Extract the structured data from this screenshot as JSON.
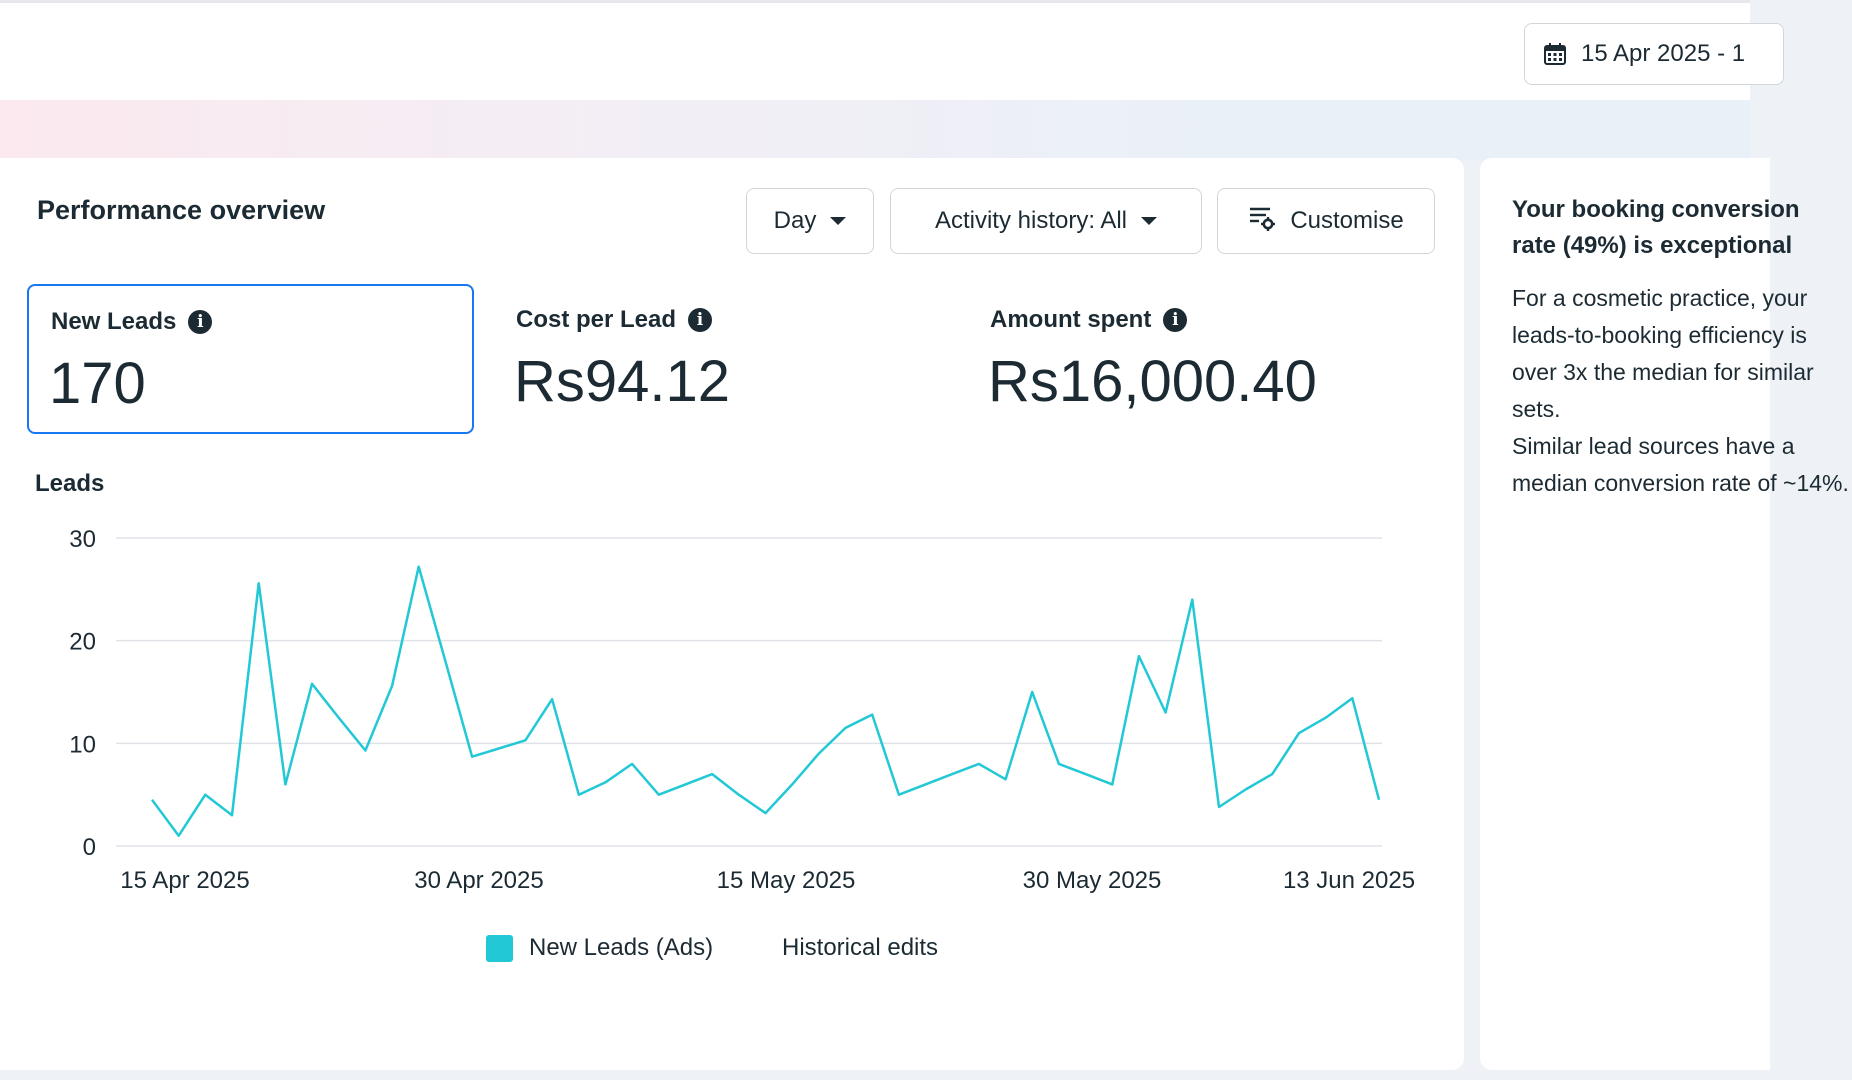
{
  "header": {
    "date_range": "15 Apr 2025 - 1",
    "calendar_icon": "calendar-icon"
  },
  "performance": {
    "title": "Performance overview",
    "buttons": {
      "day": "Day",
      "activity": "Activity history: All",
      "customise": "Customise"
    },
    "metrics": [
      {
        "label": "New Leads",
        "value": "170"
      },
      {
        "label": "Cost per Lead",
        "value": "Rs94.12"
      },
      {
        "label": "Amount spent",
        "value": "Rs16,000.40"
      }
    ],
    "chart_title": "Leads",
    "legend": {
      "series": "New Leads (Ads)",
      "edits": "Historical edits"
    }
  },
  "chart_data": {
    "type": "line",
    "ylabel": "Leads",
    "ylim": [
      0,
      30
    ],
    "yticks": [
      0,
      10,
      20,
      30
    ],
    "xtick_labels": [
      "15 Apr 2025",
      "30 Apr 2025",
      "15 May 2025",
      "30 May 2025",
      "13 Jun 2025"
    ],
    "x_start": "15 Apr 2025",
    "x_end": "13 Jun 2025",
    "grid": true,
    "series_color": "#22c8d6",
    "series": [
      {
        "name": "New Leads (Ads)",
        "values": [
          4.5,
          1,
          5,
          3,
          25.6,
          6,
          15.8,
          12.5,
          9.3,
          15.6,
          27.2,
          18,
          8.7,
          9.5,
          10.3,
          14.3,
          5,
          6.2,
          8,
          5,
          6,
          7,
          5,
          3.2,
          6,
          9,
          11.5,
          12.8,
          5,
          6,
          7,
          8,
          6.5,
          15,
          8,
          7,
          6,
          18.5,
          13,
          24,
          3.8,
          5.5,
          7,
          11,
          12.5,
          14.4,
          4.5
        ]
      }
    ]
  },
  "insight": {
    "title": "Your booking conversion rate (49%) is exceptional",
    "paragraph1": "For a cosmetic practice, your leads-to-booking efficiency is over 3x the median for similar sets.",
    "paragraph2": "Similar lead sources have a median conversion rate of ~14%."
  }
}
